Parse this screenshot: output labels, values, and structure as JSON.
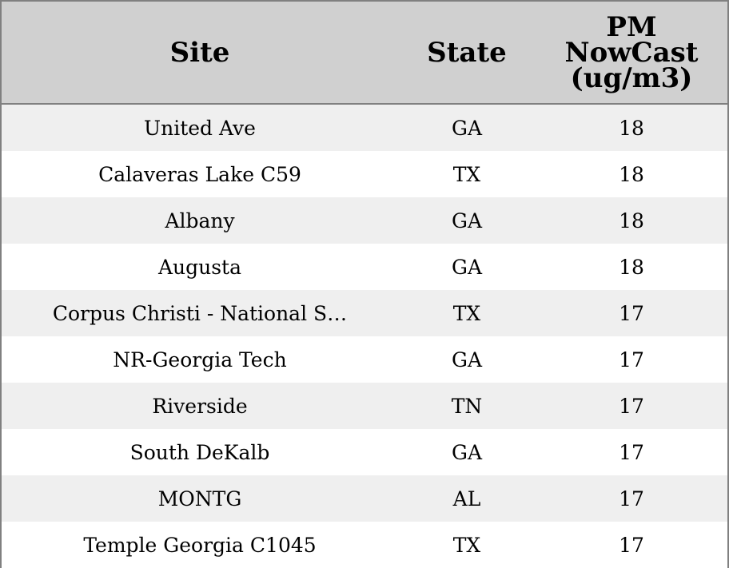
{
  "chart_data": {
    "type": "table",
    "columns": [
      "Site",
      "State",
      "PM NowCast (ug/m3)"
    ],
    "header_lines": {
      "pm": [
        "PM",
        "NowCast",
        "(ug/m3)"
      ]
    },
    "rows": [
      {
        "site": "United Ave",
        "state": "GA",
        "pm": 18
      },
      {
        "site": "Calaveras Lake C59",
        "state": "TX",
        "pm": 18
      },
      {
        "site": "Albany",
        "state": "GA",
        "pm": 18
      },
      {
        "site": "Augusta",
        "state": "GA",
        "pm": 18
      },
      {
        "site": "Corpus Christi - National S…",
        "state": "TX",
        "pm": 17
      },
      {
        "site": "NR-Georgia Tech",
        "state": "GA",
        "pm": 17
      },
      {
        "site": "Riverside",
        "state": "TN",
        "pm": 17
      },
      {
        "site": "South DeKalb",
        "state": "GA",
        "pm": 17
      },
      {
        "site": "MONTG",
        "state": "AL",
        "pm": 17
      },
      {
        "site": "Temple Georgia C1045",
        "state": "TX",
        "pm": 17
      }
    ]
  }
}
